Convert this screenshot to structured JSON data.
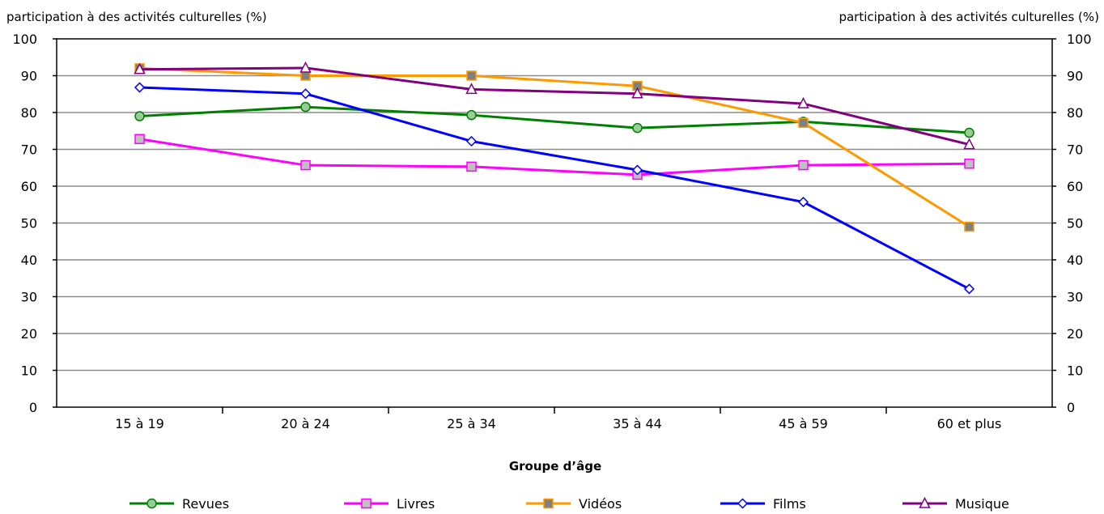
{
  "chart_data": {
    "type": "line",
    "title": "",
    "ylabel_left": "participation à des activités culturelles (%)",
    "ylabel_right": "participation à des activités culturelles (%)",
    "xlabel": "Groupe d’âge",
    "categories": [
      "15 à 19",
      "20 à 24",
      "25 à 34",
      "35 à 44",
      "45 à 59",
      "60 et plus"
    ],
    "ylim": [
      0,
      100
    ],
    "yticks": [
      0,
      10,
      20,
      30,
      40,
      50,
      60,
      70,
      80,
      90,
      100
    ],
    "grid": true,
    "legend_position": "bottom",
    "series": [
      {
        "name": "Revues",
        "color": "#008000",
        "marker": "circle",
        "marker_fill": "#99cc99",
        "values": [
          79,
          81.5,
          79.3,
          75.8,
          77.5,
          74.5
        ]
      },
      {
        "name": "Livres",
        "color": "#ff00ff",
        "marker": "square",
        "marker_fill": "#c0c0c0",
        "values": [
          72.8,
          65.7,
          65.3,
          63.1,
          65.7,
          66.1
        ]
      },
      {
        "name": "Vidéos",
        "color": "#ff9900",
        "marker": "square",
        "marker_fill": "#808080",
        "values": [
          92,
          90,
          90,
          87.2,
          77.2,
          49
        ]
      },
      {
        "name": "Films",
        "color": "#0000ff",
        "marker": "diamond",
        "marker_fill": "#ffffff",
        "values": [
          86.8,
          85.1,
          72.2,
          64.4,
          55.7,
          32.1
        ]
      },
      {
        "name": "Musique",
        "color": "#800080",
        "marker": "triangle",
        "marker_fill": "#ffffff",
        "values": [
          91.7,
          92.1,
          86.3,
          85.1,
          82.4,
          71.3
        ]
      }
    ]
  }
}
